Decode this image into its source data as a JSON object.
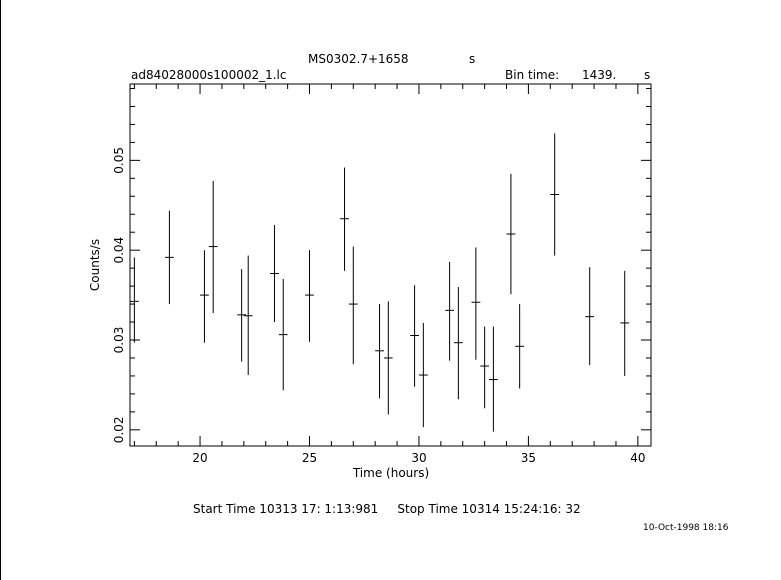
{
  "header": {
    "object_name": "MS0302.7+1658",
    "object_unit": "s",
    "file_name": "ad84028000s100002_1.lc",
    "bin_time_label": "Bin time:",
    "bin_time_value": "1439.",
    "bin_time_unit": "s"
  },
  "footer": {
    "time_range": "Start Time 10313 17: 1:13:981     Stop Time 10314 15:24:16: 32",
    "plot_date": "10-Oct-1998 18:16"
  },
  "chart_data": {
    "type": "scatter",
    "xlabel": "Time (hours)",
    "ylabel": "Counts/s",
    "xlim": [
      16.8,
      40.6
    ],
    "ylim": [
      0.0182,
      0.0585
    ],
    "x_ticks": [
      20,
      25,
      30,
      35,
      40
    ],
    "y_ticks": [
      0.02,
      0.03,
      0.04,
      0.05
    ],
    "x_tick_labels": [
      "20",
      "25",
      "30",
      "35",
      "40"
    ],
    "y_tick_labels": [
      "0.02",
      "0.03",
      "0.04",
      "0.05"
    ],
    "grid": false,
    "points": [
      {
        "x": 17.0,
        "y": 0.0343,
        "yerr_lo": 0.0297,
        "yerr_hi": 0.0392,
        "xerr": 0.2
      },
      {
        "x": 18.6,
        "y": 0.0392,
        "yerr_lo": 0.034,
        "yerr_hi": 0.0444,
        "xerr": 0.2
      },
      {
        "x": 20.2,
        "y": 0.035,
        "yerr_lo": 0.0297,
        "yerr_hi": 0.04,
        "xerr": 0.2
      },
      {
        "x": 20.6,
        "y": 0.0404,
        "yerr_lo": 0.033,
        "yerr_hi": 0.0477,
        "xerr": 0.2
      },
      {
        "x": 21.9,
        "y": 0.0328,
        "yerr_lo": 0.0276,
        "yerr_hi": 0.0379,
        "xerr": 0.2
      },
      {
        "x": 22.2,
        "y": 0.0327,
        "yerr_lo": 0.0261,
        "yerr_hi": 0.0394,
        "xerr": 0.2
      },
      {
        "x": 23.4,
        "y": 0.0374,
        "yerr_lo": 0.032,
        "yerr_hi": 0.0428,
        "xerr": 0.2
      },
      {
        "x": 23.8,
        "y": 0.0306,
        "yerr_lo": 0.0244,
        "yerr_hi": 0.0368,
        "xerr": 0.2
      },
      {
        "x": 25.0,
        "y": 0.035,
        "yerr_lo": 0.0298,
        "yerr_hi": 0.04,
        "xerr": 0.2
      },
      {
        "x": 26.6,
        "y": 0.0435,
        "yerr_lo": 0.0377,
        "yerr_hi": 0.0492,
        "xerr": 0.2
      },
      {
        "x": 27.0,
        "y": 0.034,
        "yerr_lo": 0.0273,
        "yerr_hi": 0.0404,
        "xerr": 0.2
      },
      {
        "x": 28.2,
        "y": 0.0288,
        "yerr_lo": 0.0235,
        "yerr_hi": 0.034,
        "xerr": 0.2
      },
      {
        "x": 28.6,
        "y": 0.028,
        "yerr_lo": 0.0217,
        "yerr_hi": 0.0343,
        "xerr": 0.2
      },
      {
        "x": 29.8,
        "y": 0.0305,
        "yerr_lo": 0.0248,
        "yerr_hi": 0.0361,
        "xerr": 0.2
      },
      {
        "x": 30.2,
        "y": 0.0261,
        "yerr_lo": 0.0203,
        "yerr_hi": 0.0319,
        "xerr": 0.2
      },
      {
        "x": 31.4,
        "y": 0.0333,
        "yerr_lo": 0.0277,
        "yerr_hi": 0.0387,
        "xerr": 0.2
      },
      {
        "x": 31.8,
        "y": 0.0297,
        "yerr_lo": 0.0234,
        "yerr_hi": 0.0359,
        "xerr": 0.2
      },
      {
        "x": 32.6,
        "y": 0.0342,
        "yerr_lo": 0.0278,
        "yerr_hi": 0.0403,
        "xerr": 0.2
      },
      {
        "x": 33.0,
        "y": 0.0271,
        "yerr_lo": 0.0224,
        "yerr_hi": 0.0315,
        "xerr": 0.2
      },
      {
        "x": 33.4,
        "y": 0.0256,
        "yerr_lo": 0.0198,
        "yerr_hi": 0.0315,
        "xerr": 0.2
      },
      {
        "x": 34.2,
        "y": 0.0418,
        "yerr_lo": 0.0351,
        "yerr_hi": 0.0485,
        "xerr": 0.2
      },
      {
        "x": 34.6,
        "y": 0.0293,
        "yerr_lo": 0.0246,
        "yerr_hi": 0.034,
        "xerr": 0.2
      },
      {
        "x": 36.2,
        "y": 0.0462,
        "yerr_lo": 0.0394,
        "yerr_hi": 0.053,
        "xerr": 0.2
      },
      {
        "x": 37.8,
        "y": 0.0326,
        "yerr_lo": 0.0272,
        "yerr_hi": 0.0381,
        "xerr": 0.2
      },
      {
        "x": 39.4,
        "y": 0.0319,
        "yerr_lo": 0.026,
        "yerr_hi": 0.0377,
        "xerr": 0.2
      }
    ]
  }
}
